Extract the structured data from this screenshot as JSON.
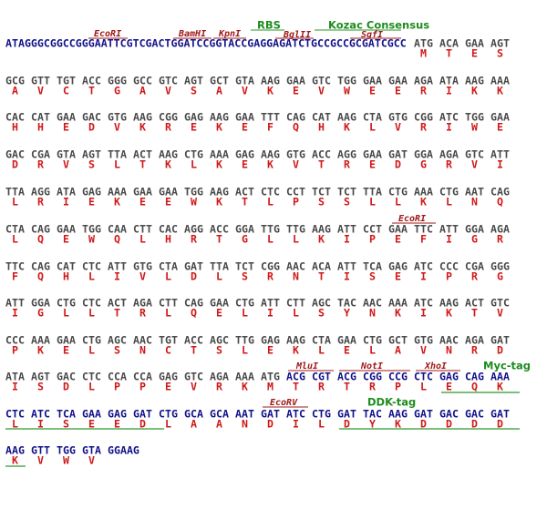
{
  "features": [
    "RBS",
    "Kozac Consensus",
    "EcoRI",
    "BamHI",
    "KpnI",
    "BglII",
    "SgfI",
    "EcoRI",
    "MluI",
    "NotI",
    "XhoI",
    "Myc-tag",
    "EcoRV",
    "DDK-tag"
  ],
  "leader": "ATAGGGCGGCCGGGAATTCGTCGACTGGATCCGGTACCGAGGAGATCTGCCGCCGCGATCGCC",
  "rows": [
    {
      "codons": [
        "ATG",
        "ACA",
        "GAA",
        "AGT"
      ],
      "aa": [
        "M",
        "T",
        "E",
        "S"
      ]
    },
    {
      "codons": [
        "GCG",
        "GTT",
        "TGT",
        "ACC",
        "GGG",
        "GCC",
        "GTC",
        "AGT",
        "GCT",
        "GTA",
        "AAG",
        "GAA",
        "GTC",
        "TGG",
        "GAA",
        "GAA",
        "AGA",
        "ATA",
        "AAG",
        "AAA"
      ],
      "aa": [
        "A",
        "V",
        "C",
        "T",
        "G",
        "A",
        "V",
        "S",
        "A",
        "V",
        "K",
        "E",
        "V",
        "W",
        "E",
        "E",
        "R",
        "I",
        "K",
        "K"
      ]
    },
    {
      "codons": [
        "CAC",
        "CAT",
        "GAA",
        "GAC",
        "GTG",
        "AAG",
        "CGG",
        "GAG",
        "AAG",
        "GAA",
        "TTT",
        "CAG",
        "CAT",
        "AAG",
        "CTA",
        "GTG",
        "CGG",
        "ATC",
        "TGG",
        "GAA"
      ],
      "aa": [
        "H",
        "H",
        "E",
        "D",
        "V",
        "K",
        "R",
        "E",
        "K",
        "E",
        "F",
        "Q",
        "H",
        "K",
        "L",
        "V",
        "R",
        "I",
        "W",
        "E"
      ]
    },
    {
      "codons": [
        "GAC",
        "CGA",
        "GTA",
        "AGT",
        "TTA",
        "ACT",
        "AAG",
        "CTG",
        "AAA",
        "GAG",
        "AAG",
        "GTG",
        "ACC",
        "AGG",
        "GAA",
        "GAT",
        "GGA",
        "AGA",
        "GTC",
        "ATT"
      ],
      "aa": [
        "D",
        "R",
        "V",
        "S",
        "L",
        "T",
        "K",
        "L",
        "K",
        "E",
        "K",
        "V",
        "T",
        "R",
        "E",
        "D",
        "G",
        "R",
        "V",
        "I"
      ]
    },
    {
      "codons": [
        "TTA",
        "AGG",
        "ATA",
        "GAG",
        "AAA",
        "GAA",
        "GAA",
        "TGG",
        "AAG",
        "ACT",
        "CTC",
        "CCT",
        "TCT",
        "TCT",
        "TTA",
        "CTG",
        "AAA",
        "CTG",
        "AAT",
        "CAG"
      ],
      "aa": [
        "L",
        "R",
        "I",
        "E",
        "K",
        "E",
        "E",
        "W",
        "K",
        "T",
        "L",
        "P",
        "S",
        "S",
        "L",
        "L",
        "K",
        "L",
        "N",
        "Q"
      ]
    },
    {
      "codons": [
        "CTA",
        "CAG",
        "GAA",
        "TGG",
        "CAA",
        "CTT",
        "CAC",
        "AGG",
        "ACC",
        "GGA",
        "TTG",
        "TTG",
        "AAG",
        "ATT",
        "CCT",
        "GAA",
        "TTC",
        "ATT",
        "GGA",
        "AGA"
      ],
      "aa": [
        "L",
        "Q",
        "E",
        "W",
        "Q",
        "L",
        "H",
        "R",
        "T",
        "G",
        "L",
        "L",
        "K",
        "I",
        "P",
        "E",
        "F",
        "I",
        "G",
        "R"
      ]
    },
    {
      "codons": [
        "TTC",
        "CAG",
        "CAT",
        "CTC",
        "ATT",
        "GTG",
        "CTA",
        "GAT",
        "TTA",
        "TCT",
        "CGG",
        "AAC",
        "ACA",
        "ATT",
        "TCA",
        "GAG",
        "ATC",
        "CCC",
        "CGA",
        "GGG"
      ],
      "aa": [
        "F",
        "Q",
        "H",
        "L",
        "I",
        "V",
        "L",
        "D",
        "L",
        "S",
        "R",
        "N",
        "T",
        "I",
        "S",
        "E",
        "I",
        "P",
        "R",
        "G"
      ]
    },
    {
      "codons": [
        "ATT",
        "GGA",
        "CTG",
        "CTC",
        "ACT",
        "AGA",
        "CTT",
        "CAG",
        "GAA",
        "CTG",
        "ATT",
        "CTT",
        "AGC",
        "TAC",
        "AAC",
        "AAA",
        "ATC",
        "AAG",
        "ACT",
        "GTC"
      ],
      "aa": [
        "I",
        "G",
        "L",
        "L",
        "T",
        "R",
        "L",
        "Q",
        "E",
        "L",
        "I",
        "L",
        "S",
        "Y",
        "N",
        "K",
        "I",
        "K",
        "T",
        "V"
      ]
    },
    {
      "codons": [
        "CCC",
        "AAA",
        "GAA",
        "CTG",
        "AGC",
        "AAC",
        "TGT",
        "ACC",
        "AGC",
        "TTG",
        "GAG",
        "AAG",
        "CTA",
        "GAA",
        "CTG",
        "GCT",
        "GTG",
        "AAC",
        "AGA",
        "GAT"
      ],
      "aa": [
        "P",
        "K",
        "E",
        "L",
        "S",
        "N",
        "C",
        "T",
        "S",
        "L",
        "E",
        "K",
        "L",
        "E",
        "L",
        "A",
        "V",
        "N",
        "R",
        "D"
      ]
    },
    {
      "codons": [
        "ATA",
        "AGT",
        "GAC",
        "CTC",
        "CCA",
        "CCA",
        "GAG",
        "GTC",
        "AGA",
        "AAA",
        "ATG",
        "ACG",
        "CGT",
        "ACG",
        "CGG",
        "CCG",
        "CTC",
        "GAG",
        "CAG",
        "AAA"
      ],
      "aa": [
        "I",
        "S",
        "D",
        "L",
        "P",
        "P",
        "E",
        "V",
        "R",
        "K",
        "M",
        "T",
        "R",
        "T",
        "R",
        "P",
        "L",
        "E",
        "Q",
        "K"
      ]
    },
    {
      "codons": [
        "CTC",
        "ATC",
        "TCA",
        "GAA",
        "GAG",
        "GAT",
        "CTG",
        "GCA",
        "GCA",
        "AAT",
        "GAT",
        "ATC",
        "CTG",
        "GAT",
        "TAC",
        "AAG",
        "GAT",
        "GAC",
        "GAC",
        "GAT"
      ],
      "aa": [
        "L",
        "I",
        "S",
        "E",
        "E",
        "D",
        "L",
        "A",
        "A",
        "N",
        "D",
        "I",
        "L",
        "D",
        "Y",
        "K",
        "D",
        "D",
        "D",
        "D"
      ]
    },
    {
      "codons": [
        "AAG",
        "GTT",
        "TGG",
        "GTA",
        "GGAAG"
      ],
      "aa": [
        "K",
        "V",
        "W",
        "V"
      ]
    }
  ]
}
